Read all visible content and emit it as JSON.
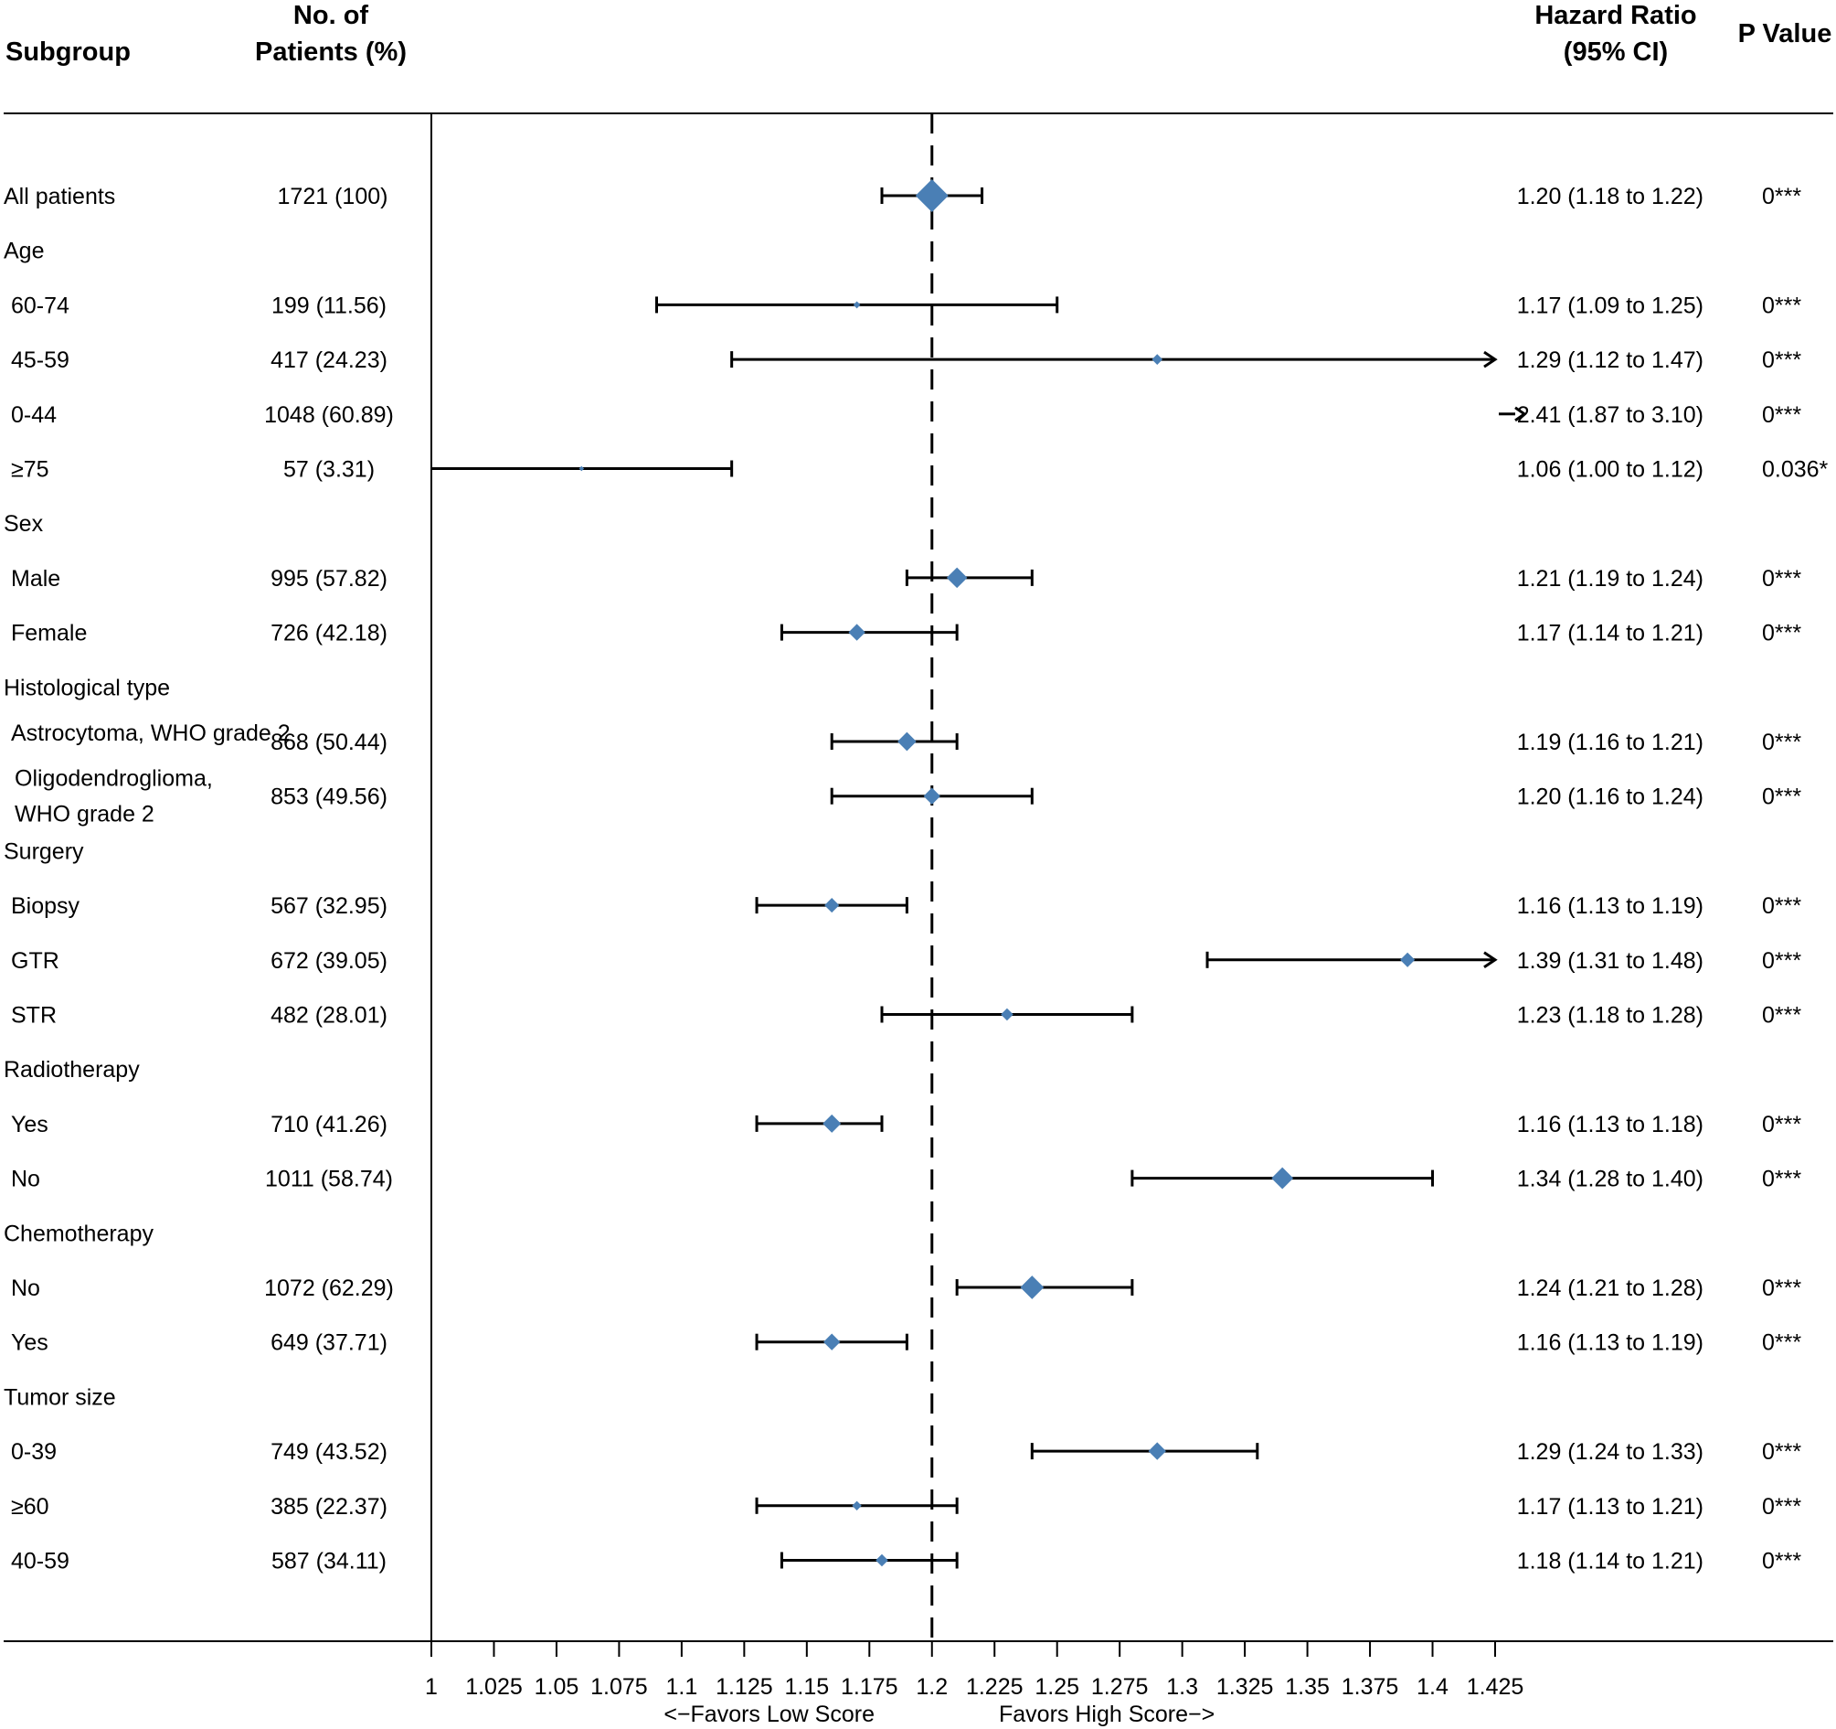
{
  "chart_data": {
    "type": "forest",
    "headers": {
      "subgroup": "Subgroup",
      "patients_line1": "No. of",
      "patients_line2": "Patients (%)",
      "hr_line1": "Hazard Ratio",
      "hr_line2": "(95% CI)",
      "pvalue": "P Value"
    },
    "axis": {
      "xlim": [
        1,
        1.425
      ],
      "ticks": [
        "1",
        "1.025",
        "1.05",
        "1.075",
        "1.1",
        "1.125",
        "1.15",
        "1.175",
        "1.2",
        "1.225",
        "1.25",
        "1.275",
        "1.3",
        "1.325",
        "1.35",
        "1.375",
        "1.4",
        "1.425"
      ],
      "reference_line": 1.2,
      "label_left": "<−Favors Low Score",
      "label_right": "Favors High Score−>"
    },
    "colors": {
      "marker": "#4a7fb5",
      "line": "#000000"
    },
    "rows": [
      {
        "label": "All patients",
        "indent": false,
        "n": "1721 (100)",
        "hr": 1.2,
        "lo": 1.18,
        "hi": 1.22,
        "ci_text": "1.20 (1.18 to 1.22)",
        "p": "0***",
        "size": 1.0
      },
      {
        "label": "Age",
        "header": true
      },
      {
        "label": "60-74",
        "indent": true,
        "n": "199 (11.56)",
        "hr": 1.17,
        "lo": 1.09,
        "hi": 1.25,
        "ci_text": "1.17 (1.09 to 1.25)",
        "p": "0***",
        "size": 0.12
      },
      {
        "label": "45-59",
        "indent": true,
        "n": "417 (24.23)",
        "hr": 1.29,
        "lo": 1.12,
        "hi": 1.47,
        "ci_text": "1.29 (1.12 to 1.47)",
        "p": "0***",
        "size": 0.24
      },
      {
        "label": "0-44",
        "indent": true,
        "n": "1048 (60.89)",
        "hr": 2.41,
        "lo": 1.87,
        "hi": 3.1,
        "ci_text": "2.41 (1.87 to 3.10)",
        "p": "0***",
        "size": 0.0
      },
      {
        "label": "≥75",
        "indent": true,
        "n": "57 (3.31)",
        "hr": 1.06,
        "lo": 1.0,
        "hi": 1.12,
        "ci_text": "1.06 (1.00 to 1.12)",
        "p": "0.036*",
        "size": 0.05
      },
      {
        "label": "Sex",
        "header": true
      },
      {
        "label": "Male",
        "indent": true,
        "n": "995 (57.82)",
        "hr": 1.21,
        "lo": 1.19,
        "hi": 1.24,
        "ci_text": "1.21 (1.19 to 1.24)",
        "p": "0***",
        "size": 0.58
      },
      {
        "label": "Female",
        "indent": true,
        "n": "726 (42.18)",
        "hr": 1.17,
        "lo": 1.14,
        "hi": 1.21,
        "ci_text": "1.17 (1.14 to 1.21)",
        "p": "0***",
        "size": 0.45
      },
      {
        "label": "Histological type",
        "header": true
      },
      {
        "label": "Astrocytoma, WHO grade 2",
        "indent": true,
        "n": "868 (50.44)",
        "hr": 1.19,
        "lo": 1.16,
        "hi": 1.21,
        "ci_text": "1.19 (1.16 to 1.21)",
        "p": "0***",
        "size": 0.52
      },
      {
        "label": "Oligodendroglioma,",
        "label2": "WHO grade 2",
        "indent": true,
        "n": "853 (49.56)",
        "hr": 1.2,
        "lo": 1.16,
        "hi": 1.24,
        "ci_text": "1.20 (1.16 to 1.24)",
        "p": "0***",
        "size": 0.45
      },
      {
        "label": "Surgery",
        "header": true
      },
      {
        "label": "Biopsy",
        "indent": true,
        "n": "567 (32.95)",
        "hr": 1.16,
        "lo": 1.13,
        "hi": 1.19,
        "ci_text": "1.16 (1.13 to 1.19)",
        "p": "0***",
        "size": 0.38
      },
      {
        "label": "GTR",
        "indent": true,
        "n": "672 (39.05)",
        "hr": 1.39,
        "lo": 1.31,
        "hi": 1.48,
        "ci_text": "1.39 (1.31 to 1.48)",
        "p": "0***",
        "size": 0.38
      },
      {
        "label": "STR",
        "indent": true,
        "n": "482 (28.01)",
        "hr": 1.23,
        "lo": 1.18,
        "hi": 1.28,
        "ci_text": "1.23 (1.18 to 1.28)",
        "p": "0***",
        "size": 0.3
      },
      {
        "label": "Radiotherapy",
        "header": true
      },
      {
        "label": "Yes",
        "indent": true,
        "n": "710 (41.26)",
        "hr": 1.16,
        "lo": 1.13,
        "hi": 1.18,
        "ci_text": "1.16 (1.13 to 1.18)",
        "p": "0***",
        "size": 0.5
      },
      {
        "label": "No",
        "indent": true,
        "n": "1011 (58.74)",
        "hr": 1.34,
        "lo": 1.28,
        "hi": 1.4,
        "ci_text": "1.34 (1.28 to 1.40)",
        "p": "0***",
        "size": 0.62
      },
      {
        "label": "Chemotherapy",
        "header": true
      },
      {
        "label": "No",
        "indent": true,
        "n": "1072 (62.29)",
        "hr": 1.24,
        "lo": 1.21,
        "hi": 1.28,
        "ci_text": "1.24 (1.21 to 1.28)",
        "p": "0***",
        "size": 0.68
      },
      {
        "label": "Yes",
        "indent": true,
        "n": "649 (37.71)",
        "hr": 1.16,
        "lo": 1.13,
        "hi": 1.19,
        "ci_text": "1.16 (1.13 to 1.19)",
        "p": "0***",
        "size": 0.45
      },
      {
        "label": "Tumor size",
        "header": true
      },
      {
        "label": "0-39",
        "indent": true,
        "n": "749 (43.52)",
        "hr": 1.29,
        "lo": 1.24,
        "hi": 1.33,
        "ci_text": "1.29 (1.24 to 1.33)",
        "p": "0***",
        "size": 0.48
      },
      {
        "label": "≥60",
        "indent": true,
        "n": "385 (22.37)",
        "hr": 1.17,
        "lo": 1.13,
        "hi": 1.21,
        "ci_text": "1.17 (1.13 to 1.21)",
        "p": "0***",
        "size": 0.2
      },
      {
        "label": "40-59",
        "indent": true,
        "n": "587 (34.11)",
        "hr": 1.18,
        "lo": 1.14,
        "hi": 1.21,
        "ci_text": "1.18 (1.14 to 1.21)",
        "p": "0***",
        "size": 0.3
      }
    ]
  }
}
